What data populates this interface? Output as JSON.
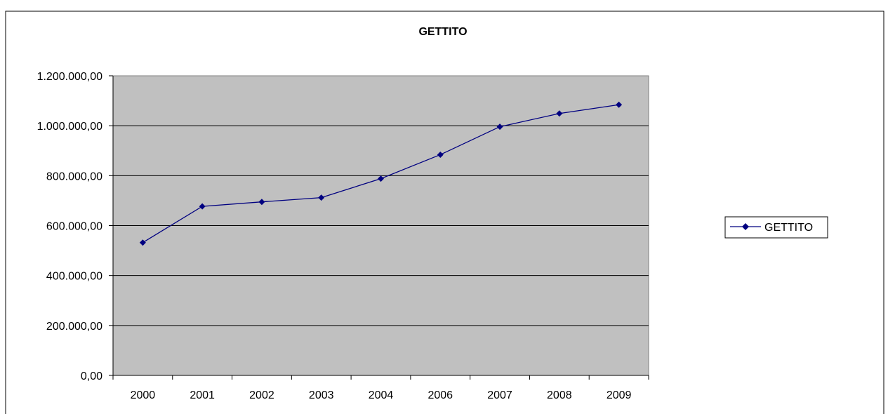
{
  "chart_data": {
    "type": "line",
    "title": "GETTITO",
    "xlabel": "",
    "ylabel": "",
    "categories": [
      "2000",
      "2001",
      "2002",
      "2003",
      "2004",
      "2006",
      "2007",
      "2008",
      "2009"
    ],
    "series": [
      {
        "name": "GETTITO",
        "values": [
          532000,
          677000,
          695000,
          712000,
          788000,
          884000,
          996000,
          1049000,
          1084000
        ],
        "color": "#000080",
        "marker": "diamond"
      }
    ],
    "ylim": [
      0,
      1200000
    ],
    "yticks": [
      0,
      200000,
      400000,
      600000,
      800000,
      1000000,
      1200000
    ],
    "ytick_labels": [
      "0,00",
      "200.000,00",
      "400.000,00",
      "600.000,00",
      "800.000,00",
      "1.000.000,00",
      "1.200.000,00"
    ],
    "grid": true,
    "plot_background": "#c0c0c0",
    "legend_position": "right"
  }
}
